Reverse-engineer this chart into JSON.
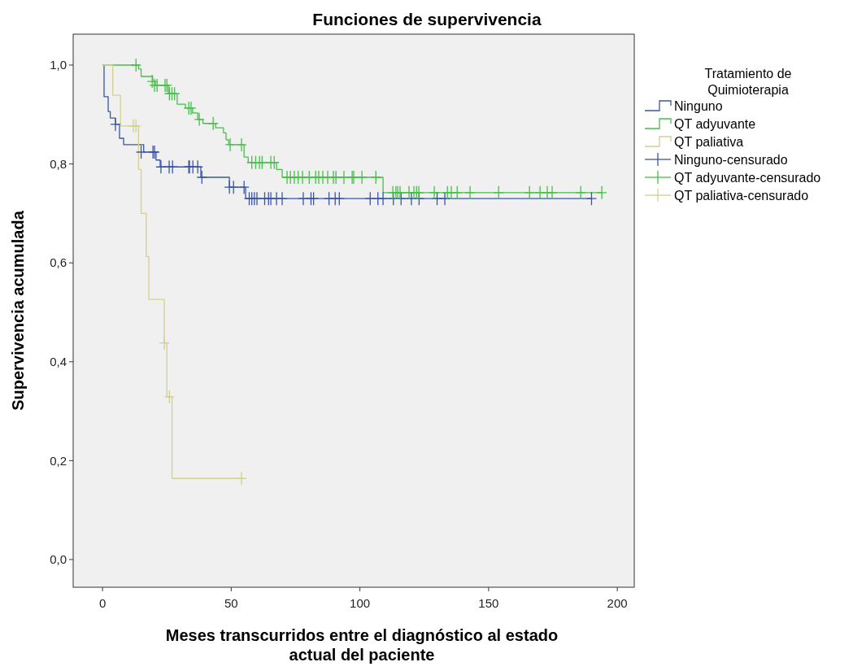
{
  "chart_data": {
    "type": "step",
    "title": "Funciones de supervivencia",
    "xlabel": "Meses transcurridos entre el diagnóstico al estado\nactual del paciente",
    "ylabel": "Supervivencia acumulada",
    "legend_title": "Tratamiento de\nQuimioterapia",
    "legend": "right",
    "grid": false,
    "line_style": "solid",
    "xlim": [
      -11.4,
      206.6
    ],
    "xticks": [
      0,
      50,
      100,
      150,
      200
    ],
    "ylim": [
      -0.056,
      1.0625
    ],
    "yticks": [
      {
        "value": 0,
        "label": "0,0"
      },
      {
        "value": 0.2,
        "label": "0,2"
      },
      {
        "value": 0.4,
        "label": "0,4"
      },
      {
        "value": 0.6,
        "label": "0,6"
      },
      {
        "value": 0.8,
        "label": "0,8"
      },
      {
        "value": 1,
        "label": "1,0"
      }
    ],
    "series": [
      {
        "name": "Ninguno",
        "color": "#3a55a8",
        "x": [
          0,
          0.6,
          2.2,
          3,
          5,
          6.6,
          8.2,
          16,
          20.8,
          22.4,
          38.2,
          49.3,
          55.6,
          190
        ],
        "values": [
          1,
          0.936,
          0.906,
          0.893,
          0.88,
          0.852,
          0.839,
          0.824,
          0.808,
          0.794,
          0.773,
          0.753,
          0.73,
          0.73
        ]
      },
      {
        "name": "QT adyuvante",
        "color": "#45c048",
        "x": [
          0,
          14,
          15,
          19.5,
          20.5,
          25.6,
          29,
          32.2,
          35,
          37,
          39,
          44,
          47,
          48,
          49,
          55,
          56.6,
          67.6,
          69.8,
          109,
          194
        ],
        "values": [
          1,
          0.992,
          0.977,
          0.967,
          0.959,
          0.942,
          0.921,
          0.913,
          0.903,
          0.89,
          0.882,
          0.873,
          0.863,
          0.849,
          0.839,
          0.814,
          0.803,
          0.789,
          0.773,
          0.742,
          0.742
        ]
      },
      {
        "name": "QT paliativa",
        "color": "#d4cf8e",
        "x": [
          0,
          4,
          7,
          14,
          15,
          17,
          18,
          24,
          25,
          27,
          54
        ],
        "values": [
          1,
          0.939,
          0.877,
          0.789,
          0.7,
          0.613,
          0.526,
          0.438,
          0.329,
          0.164,
          0.164
        ]
      },
      {
        "name": "Ninguno-censurado",
        "type": "scatter",
        "marker": "cross",
        "color": "#3a55a8",
        "x": [
          5,
          15,
          19.6,
          20.2,
          22.7,
          25.9,
          27.2,
          33.5,
          33.8,
          35.1,
          37,
          38.6,
          49.3,
          50.9,
          55,
          57,
          58,
          59,
          60,
          63,
          64.5,
          65.4,
          67.6,
          69.8,
          78,
          81,
          82,
          88,
          90.4,
          92,
          104,
          107,
          109,
          113,
          116,
          120,
          123,
          130,
          133,
          190
        ],
        "values": [
          0.88,
          0.824,
          0.824,
          0.824,
          0.794,
          0.794,
          0.794,
          0.794,
          0.794,
          0.794,
          0.794,
          0.773,
          0.753,
          0.753,
          0.753,
          0.73,
          0.73,
          0.73,
          0.73,
          0.73,
          0.73,
          0.73,
          0.73,
          0.73,
          0.73,
          0.73,
          0.73,
          0.73,
          0.73,
          0.73,
          0.73,
          0.73,
          0.73,
          0.73,
          0.73,
          0.73,
          0.73,
          0.73,
          0.73,
          0.73
        ]
      },
      {
        "name": "QT adyuvante-censurado",
        "type": "scatter",
        "marker": "cross",
        "color": "#45c048",
        "x": [
          13,
          19.3,
          20.2,
          21.2,
          24.3,
          25,
          26,
          27,
          28,
          33.5,
          34.4,
          37.6,
          43,
          49.6,
          54,
          58,
          59.5,
          61,
          62,
          65.4,
          66.7,
          71.7,
          73,
          74.5,
          76,
          77.7,
          80.3,
          82.8,
          84,
          85.6,
          87.5,
          89.7,
          90.7,
          93.8,
          97,
          97.6,
          100.8,
          106.2,
          112.8,
          114,
          114.7,
          115.6,
          119.1,
          121,
          122,
          122.9,
          128.9,
          134,
          135.5,
          137.8,
          142.8,
          153.9,
          165.9,
          170,
          172.8,
          174.7,
          185.8,
          194
        ],
        "values": [
          1,
          0.967,
          0.959,
          0.959,
          0.959,
          0.959,
          0.942,
          0.942,
          0.942,
          0.913,
          0.913,
          0.89,
          0.882,
          0.839,
          0.839,
          0.803,
          0.803,
          0.803,
          0.803,
          0.803,
          0.803,
          0.773,
          0.773,
          0.773,
          0.773,
          0.773,
          0.773,
          0.773,
          0.773,
          0.773,
          0.773,
          0.773,
          0.773,
          0.773,
          0.773,
          0.773,
          0.773,
          0.773,
          0.742,
          0.742,
          0.742,
          0.742,
          0.742,
          0.742,
          0.742,
          0.742,
          0.742,
          0.742,
          0.742,
          0.742,
          0.742,
          0.742,
          0.742,
          0.742,
          0.742,
          0.742,
          0.742,
          0.742
        ]
      },
      {
        "name": "QT paliativa-censurado",
        "type": "scatter",
        "marker": "cross",
        "color": "#d4cf8e",
        "x": [
          12,
          13,
          24,
          26,
          54
        ],
        "values": [
          0.877,
          0.877,
          0.438,
          0.329,
          0.164
        ]
      }
    ]
  }
}
